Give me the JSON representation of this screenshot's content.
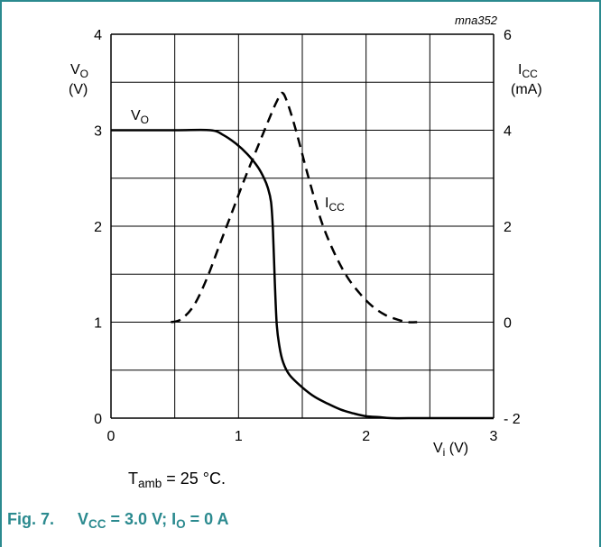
{
  "frame": {
    "color": "#2b8a8f"
  },
  "figure_id": "mna352",
  "chart_data": {
    "type": "line",
    "xlabel": {
      "base": "V",
      "sub": "i",
      "unit": " (V)"
    },
    "ylabel_left": {
      "base": "V",
      "sub": "O",
      "unit": "(V)"
    },
    "ylabel_right": {
      "base": "I",
      "sub": "CC",
      "unit": "(mA)"
    },
    "x_ticks": [
      "0",
      "1",
      "2",
      "3"
    ],
    "y_left_ticks": [
      "0",
      "1",
      "2",
      "3",
      "4"
    ],
    "y_right_ticks": [
      "- 2",
      "0",
      "2",
      "4",
      "6"
    ],
    "xlim": [
      0,
      3
    ],
    "ylim_left": [
      0,
      4
    ],
    "ylim_right": [
      -2,
      6
    ],
    "grid": true,
    "series": [
      {
        "name": "VO",
        "label_base": "V",
        "label_sub": "O",
        "axis": "left",
        "style": "solid",
        "x": [
          0,
          0.5,
          0.78,
          0.88,
          0.98,
          1.07,
          1.15,
          1.2,
          1.23,
          1.255,
          1.27,
          1.285,
          1.3,
          1.32,
          1.35,
          1.4,
          1.5,
          1.6,
          1.7,
          1.8,
          1.9,
          2.0,
          2.1,
          2.2,
          2.4,
          2.6,
          2.8,
          3.0
        ],
        "y": [
          3,
          3,
          3,
          2.95,
          2.86,
          2.75,
          2.62,
          2.5,
          2.4,
          2.25,
          1.95,
          1.4,
          0.97,
          0.75,
          0.58,
          0.45,
          0.32,
          0.22,
          0.15,
          0.09,
          0.05,
          0.02,
          0.01,
          0.0,
          0.0,
          0.0,
          0.0,
          0.0
        ]
      },
      {
        "name": "ICC",
        "label_base": "I",
        "label_sub": "CC",
        "axis": "right",
        "style": "dashed",
        "x": [
          0.47,
          0.55,
          0.65,
          0.75,
          0.85,
          0.95,
          1.05,
          1.15,
          1.25,
          1.3,
          1.34,
          1.38,
          1.45,
          1.55,
          1.65,
          1.75,
          1.85,
          1.95,
          2.05,
          2.15,
          2.25,
          2.33,
          2.4
        ],
        "y": [
          0,
          0.06,
          0.35,
          0.9,
          1.6,
          2.3,
          3.0,
          3.65,
          4.3,
          4.6,
          4.78,
          4.6,
          4.0,
          3.0,
          2.1,
          1.45,
          0.95,
          0.6,
          0.33,
          0.15,
          0.05,
          0.0,
          0.0
        ]
      }
    ]
  },
  "note": {
    "base": "T",
    "sub": "amb",
    "rest": " = 25 °C."
  },
  "caption": {
    "fig": "Fig. 7.",
    "p1": "V",
    "s1": "CC",
    "p2": " = 3.0 V; I",
    "s2": "O",
    "p3": " = 0 A",
    "color": "#2b8a8f"
  }
}
